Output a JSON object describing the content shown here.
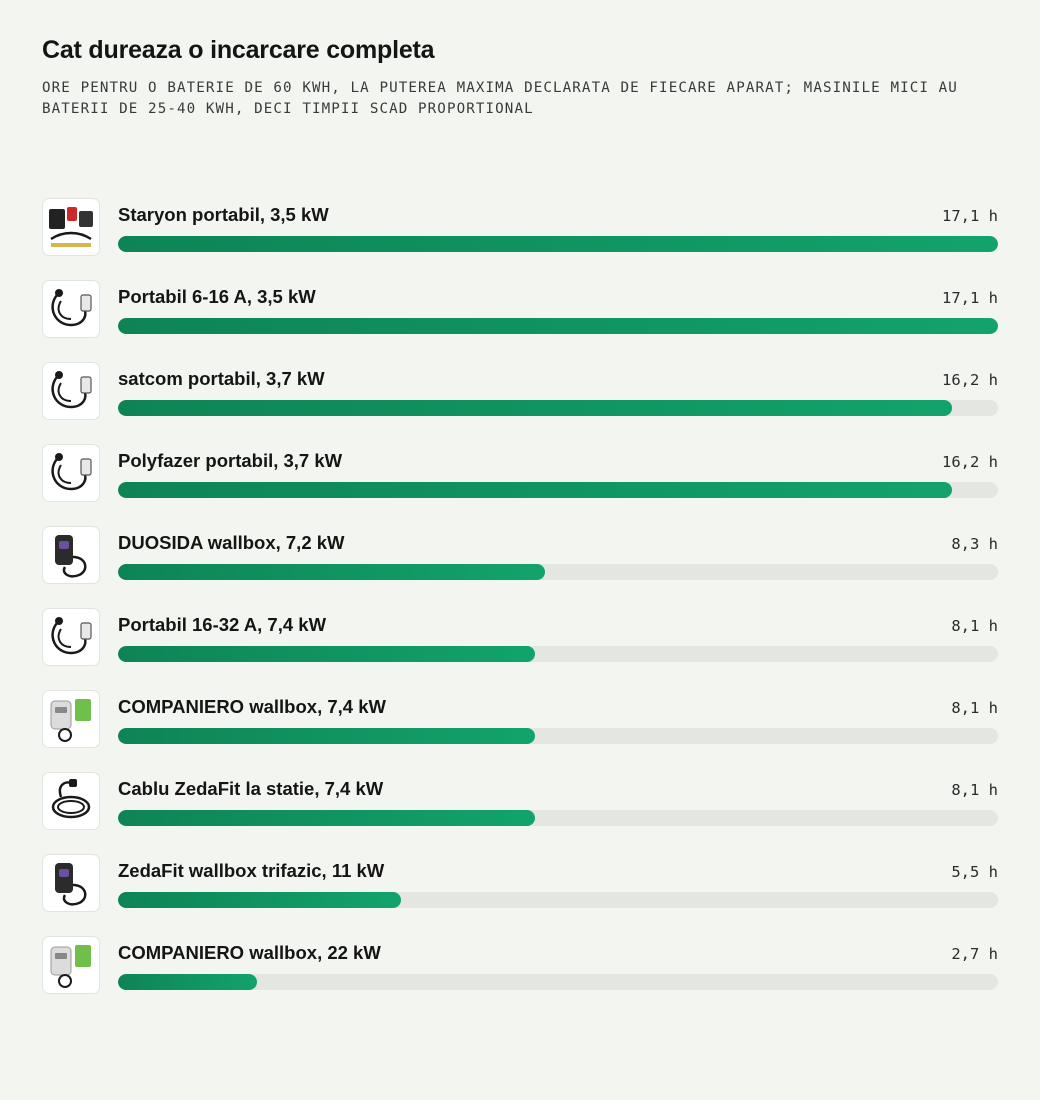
{
  "title": "Cat dureaza o incarcare completa",
  "subtitle": "ORE PENTRU O BATERIE DE 60 KWH, LA PUTEREA MAXIMA DECLARATA DE FIECARE APARAT; MASINILE MICI AU BATERII DE 25-40 KWH, DECI TIMPII SCAD PROPORTIONAL",
  "colors": {
    "bar": "#11935f",
    "track": "#e3e6e1",
    "background": "#f3f5f1"
  },
  "chart_data": {
    "type": "bar",
    "orientation": "horizontal",
    "unit": "h",
    "xlim": [
      0,
      17.1
    ],
    "categories": [
      "Staryon portabil, 3,5 kW",
      "Portabil 6-16 A, 3,5 kW",
      "satcom portabil, 3,7 kW",
      "Polyfazer portabil, 3,7 kW",
      "DUOSIDA wallbox, 7,2 kW",
      "Portabil 16-32 A, 7,4 kW",
      "COMPANIERO wallbox, 7,4 kW",
      "Cablu ZedaFit la statie, 7,4 kW",
      "ZedaFit wallbox trifazic, 11 kW",
      "COMPANIERO wallbox, 22 kW"
    ],
    "values": [
      17.1,
      17.1,
      16.2,
      16.2,
      8.3,
      8.1,
      8.1,
      8.1,
      5.5,
      2.7
    ],
    "value_labels": [
      "17,1 h",
      "17,1 h",
      "16,2 h",
      "16,2 h",
      "8,3 h",
      "8,1 h",
      "8,1 h",
      "8,1 h",
      "5,5 h",
      "2,7 h"
    ],
    "thumbnails": [
      "portable-charger-kit-image",
      "portable-cable-image",
      "portable-cable-image",
      "portable-cable-image",
      "wallbox-image",
      "portable-cable-image",
      "wallbox-kit-image",
      "cable-coil-image",
      "wallbox-image",
      "wallbox-kit-image"
    ]
  }
}
